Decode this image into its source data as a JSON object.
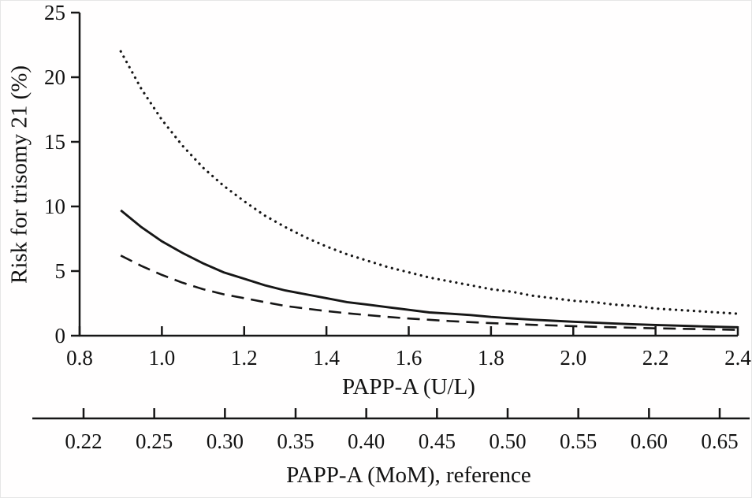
{
  "figure": {
    "background": "#ffffff",
    "line_color": "#161616"
  },
  "chart_data": {
    "type": "line",
    "title": "",
    "ylabel": "Risk for trisomy 21 (%)",
    "xlabel_primary": "PAPP-A (U/L)",
    "xlabel_secondary": "PAPP-A (MoM), reference",
    "xlim": [
      0.8,
      2.4
    ],
    "ylim": [
      0,
      25
    ],
    "grid": false,
    "legend": "none",
    "y_ticks": [
      "0",
      "5",
      "10",
      "15",
      "20",
      "25"
    ],
    "x_ticks_primary": [
      "0.8",
      "1.0",
      "1.2",
      "1.4",
      "1.6",
      "1.8",
      "2.0",
      "2.2",
      "2.4"
    ],
    "x_ticks_secondary": [
      "0.22",
      "0.25",
      "0.30",
      "0.35",
      "0.40",
      "0.45",
      "0.50",
      "0.55",
      "0.60",
      "0.65"
    ],
    "x": [
      0.9,
      0.95,
      1.0,
      1.05,
      1.1,
      1.15,
      1.2,
      1.25,
      1.3,
      1.35,
      1.4,
      1.45,
      1.5,
      1.55,
      1.6,
      1.65,
      1.7,
      1.75,
      1.8,
      1.85,
      1.9,
      1.95,
      2.0,
      2.05,
      2.1,
      2.15,
      2.2,
      2.25,
      2.3,
      2.35,
      2.4
    ],
    "series": [
      {
        "name": "upper-limit-dotted",
        "style": "dotted",
        "values": [
          22.0,
          19.1,
          16.7,
          14.7,
          13.0,
          11.6,
          10.4,
          9.3,
          8.4,
          7.6,
          6.9,
          6.3,
          5.8,
          5.3,
          4.9,
          4.5,
          4.2,
          3.9,
          3.6,
          3.4,
          3.1,
          2.9,
          2.7,
          2.6,
          2.4,
          2.3,
          2.1,
          2.0,
          1.9,
          1.8,
          1.7
        ]
      },
      {
        "name": "central-estimate-solid",
        "style": "solid",
        "values": [
          9.7,
          8.4,
          7.3,
          6.4,
          5.6,
          4.9,
          4.4,
          3.9,
          3.5,
          3.2,
          2.9,
          2.6,
          2.4,
          2.2,
          2.0,
          1.8,
          1.7,
          1.6,
          1.45,
          1.34,
          1.24,
          1.16,
          1.08,
          1.01,
          0.94,
          0.88,
          0.83,
          0.78,
          0.73,
          0.69,
          0.65
        ]
      },
      {
        "name": "lower-limit-dashed",
        "style": "dashed",
        "values": [
          6.2,
          5.4,
          4.7,
          4.1,
          3.6,
          3.2,
          2.9,
          2.6,
          2.3,
          2.1,
          1.9,
          1.74,
          1.59,
          1.45,
          1.33,
          1.23,
          1.13,
          1.05,
          0.97,
          0.91,
          0.84,
          0.79,
          0.74,
          0.69,
          0.65,
          0.61,
          0.57,
          0.54,
          0.51,
          0.48,
          0.45
        ]
      }
    ]
  }
}
